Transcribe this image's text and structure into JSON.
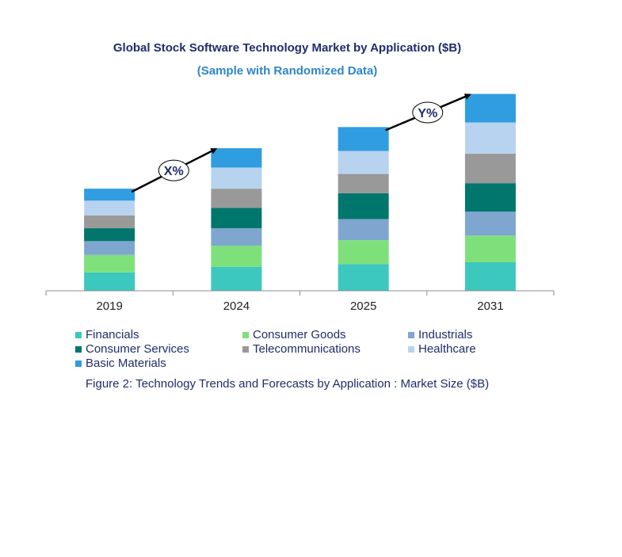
{
  "chart_data": {
    "type": "bar",
    "stacked": true,
    "title": "Global Stock Software Technology Market by Application ($B)",
    "subtitle": "(Sample with Randomized Data)",
    "categories": [
      "2019",
      "2024",
      "2025",
      "2031"
    ],
    "series": [
      {
        "name": "Financials",
        "color": "#3cc7bf",
        "values": [
          20,
          26,
          29,
          31
        ]
      },
      {
        "name": "Consumer Goods",
        "color": "#7ee07b",
        "values": [
          19,
          23,
          26,
          29
        ]
      },
      {
        "name": "Industrials",
        "color": "#7ea6cf",
        "values": [
          15,
          19,
          23,
          26
        ]
      },
      {
        "name": "Consumer Services",
        "color": "#00766c",
        "values": [
          14,
          22,
          28,
          31
        ]
      },
      {
        "name": "Telecommunications",
        "color": "#999999",
        "values": [
          14,
          21,
          21,
          32
        ]
      },
      {
        "name": "Healthcare",
        "color": "#b7d3ef",
        "values": [
          16,
          23,
          25,
          34
        ]
      },
      {
        "name": "Basic Materials",
        "color": "#2f9de0",
        "values": [
          13,
          21,
          26,
          31
        ]
      }
    ],
    "ylim": [
      0,
      230
    ],
    "grid": false,
    "legend": "bottom",
    "annotations": [
      {
        "label": "X%",
        "from": "2019",
        "to": "2024"
      },
      {
        "label": "Y%",
        "from": "2025",
        "to": "2031"
      }
    ]
  },
  "caption": "Figure 2: Technology  Trends  and Forecasts by Application : Market Size ($B)"
}
